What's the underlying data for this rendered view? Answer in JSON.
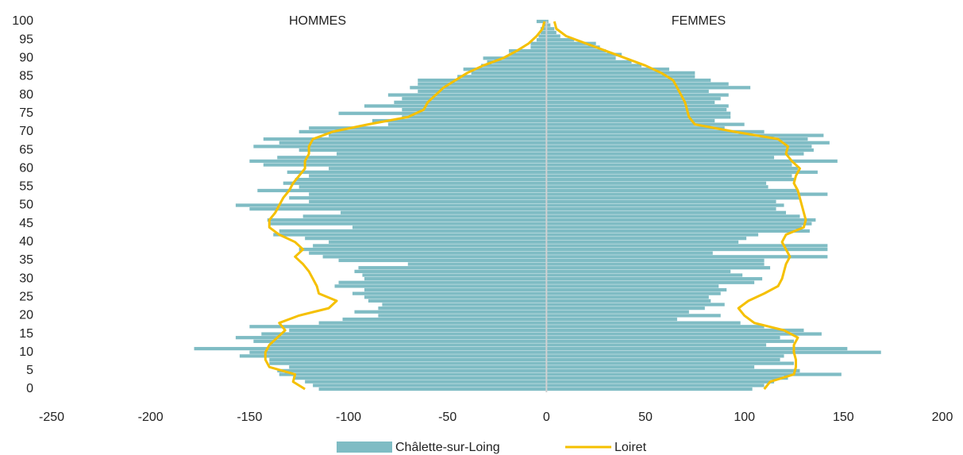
{
  "chart_data": {
    "type": "pyramid",
    "left_title": "HOMMES",
    "right_title": "FEMMES",
    "xlim": [
      -250,
      200
    ],
    "xticks": [
      -250,
      -200,
      -150,
      -100,
      -50,
      0,
      50,
      100,
      150,
      200
    ],
    "ylim": [
      0,
      100
    ],
    "yticks": [
      0,
      5,
      10,
      15,
      20,
      25,
      30,
      35,
      40,
      45,
      50,
      55,
      60,
      65,
      70,
      75,
      80,
      85,
      90,
      95,
      100
    ],
    "ages": [
      0,
      1,
      2,
      3,
      4,
      5,
      6,
      7,
      8,
      9,
      10,
      11,
      12,
      13,
      14,
      15,
      16,
      17,
      18,
      19,
      20,
      21,
      22,
      23,
      24,
      25,
      26,
      27,
      28,
      29,
      30,
      31,
      32,
      33,
      34,
      35,
      36,
      37,
      38,
      39,
      40,
      41,
      42,
      43,
      44,
      45,
      46,
      47,
      48,
      49,
      50,
      51,
      52,
      53,
      54,
      55,
      56,
      57,
      58,
      59,
      60,
      61,
      62,
      63,
      64,
      65,
      66,
      67,
      68,
      69,
      70,
      71,
      72,
      73,
      74,
      75,
      76,
      77,
      78,
      79,
      80,
      81,
      82,
      83,
      84,
      85,
      86,
      87,
      88,
      89,
      90,
      91,
      92,
      93,
      94,
      95,
      96,
      97,
      98,
      99,
      100
    ],
    "series": [
      {
        "name": "Châlette-sur-Loing",
        "type": "bar",
        "color": "#7fbcc4",
        "men": [
          -115,
          -118,
          -122,
          -128,
          -135,
          -136,
          -130,
          -140,
          -140,
          -155,
          -150,
          -178,
          -140,
          -148,
          -157,
          -144,
          -130,
          -150,
          -115,
          -103,
          -85,
          -97,
          -85,
          -83,
          -90,
          -92,
          -98,
          -92,
          -107,
          -105,
          -92,
          -93,
          -97,
          -95,
          -70,
          -105,
          -113,
          -120,
          -125,
          -118,
          -110,
          -122,
          -138,
          -135,
          -98,
          -140,
          -141,
          -123,
          -104,
          -150,
          -157,
          -120,
          -130,
          -120,
          -146,
          -125,
          -133,
          -127,
          -120,
          -131,
          -110,
          -143,
          -150,
          -136,
          -106,
          -125,
          -148,
          -135,
          -143,
          -110,
          -125,
          -120,
          -80,
          -88,
          -73,
          -105,
          -73,
          -92,
          -77,
          -73,
          -80,
          -65,
          -69,
          -65,
          -65,
          -45,
          -38,
          -42,
          -33,
          -30,
          -32,
          -19,
          -19,
          -8,
          -8,
          -5,
          -4,
          -3,
          -3,
          -2,
          -5
        ],
        "women": [
          104,
          110,
          115,
          122,
          149,
          128,
          105,
          125,
          118,
          120,
          169,
          152,
          111,
          125,
          118,
          139,
          130,
          110,
          98,
          66,
          88,
          72,
          80,
          90,
          83,
          82,
          88,
          91,
          87,
          105,
          109,
          99,
          93,
          113,
          110,
          110,
          142,
          84,
          142,
          142,
          97,
          101,
          107,
          133,
          129,
          134,
          136,
          128,
          121,
          116,
          120,
          116,
          128,
          142,
          127,
          112,
          111,
          125,
          124,
          137,
          127,
          124,
          147,
          115,
          130,
          135,
          134,
          143,
          132,
          140,
          110,
          90,
          100,
          85,
          93,
          93,
          91,
          92,
          85,
          88,
          92,
          82,
          103,
          92,
          83,
          75,
          75,
          62,
          48,
          43,
          35,
          38,
          30,
          27,
          25,
          14,
          7,
          5,
          4,
          2,
          1
        ]
      },
      {
        "name": "Loiret",
        "type": "line",
        "color": "#f5c000",
        "ages": [
          0,
          2,
          4,
          6,
          8,
          10,
          12,
          14,
          16,
          18,
          20,
          22,
          24,
          26,
          28,
          30,
          32,
          34,
          36,
          38,
          40,
          42,
          44,
          46,
          48,
          50,
          52,
          54,
          56,
          58,
          60,
          62,
          64,
          66,
          68,
          70,
          72,
          74,
          76,
          78,
          80,
          82,
          84,
          86,
          88,
          90,
          92,
          94,
          96,
          98,
          100
        ],
        "men": [
          -122,
          -128,
          -127,
          -140,
          -142,
          -142,
          -140,
          -136,
          -132,
          -135,
          -125,
          -110,
          -106,
          -115,
          -116,
          -118,
          -120,
          -123,
          -127,
          -123,
          -127,
          -135,
          -140,
          -140,
          -137,
          -135,
          -133,
          -130,
          -128,
          -125,
          -122,
          -122,
          -120,
          -120,
          -118,
          -108,
          -90,
          -70,
          -62,
          -60,
          -56,
          -52,
          -46,
          -40,
          -32,
          -22,
          -15,
          -9,
          -5,
          -2,
          -1
        ],
        "women": [
          110,
          113,
          125,
          126,
          126,
          125,
          125,
          127,
          120,
          105,
          100,
          97,
          102,
          110,
          117,
          119,
          120,
          121,
          123,
          121,
          119,
          121,
          130,
          131,
          130,
          129,
          128,
          127,
          125,
          126,
          128,
          124,
          121,
          122,
          117,
          95,
          75,
          72,
          71,
          70,
          68,
          66,
          64,
          58,
          50,
          40,
          30,
          20,
          10,
          5,
          4
        ]
      }
    ]
  }
}
